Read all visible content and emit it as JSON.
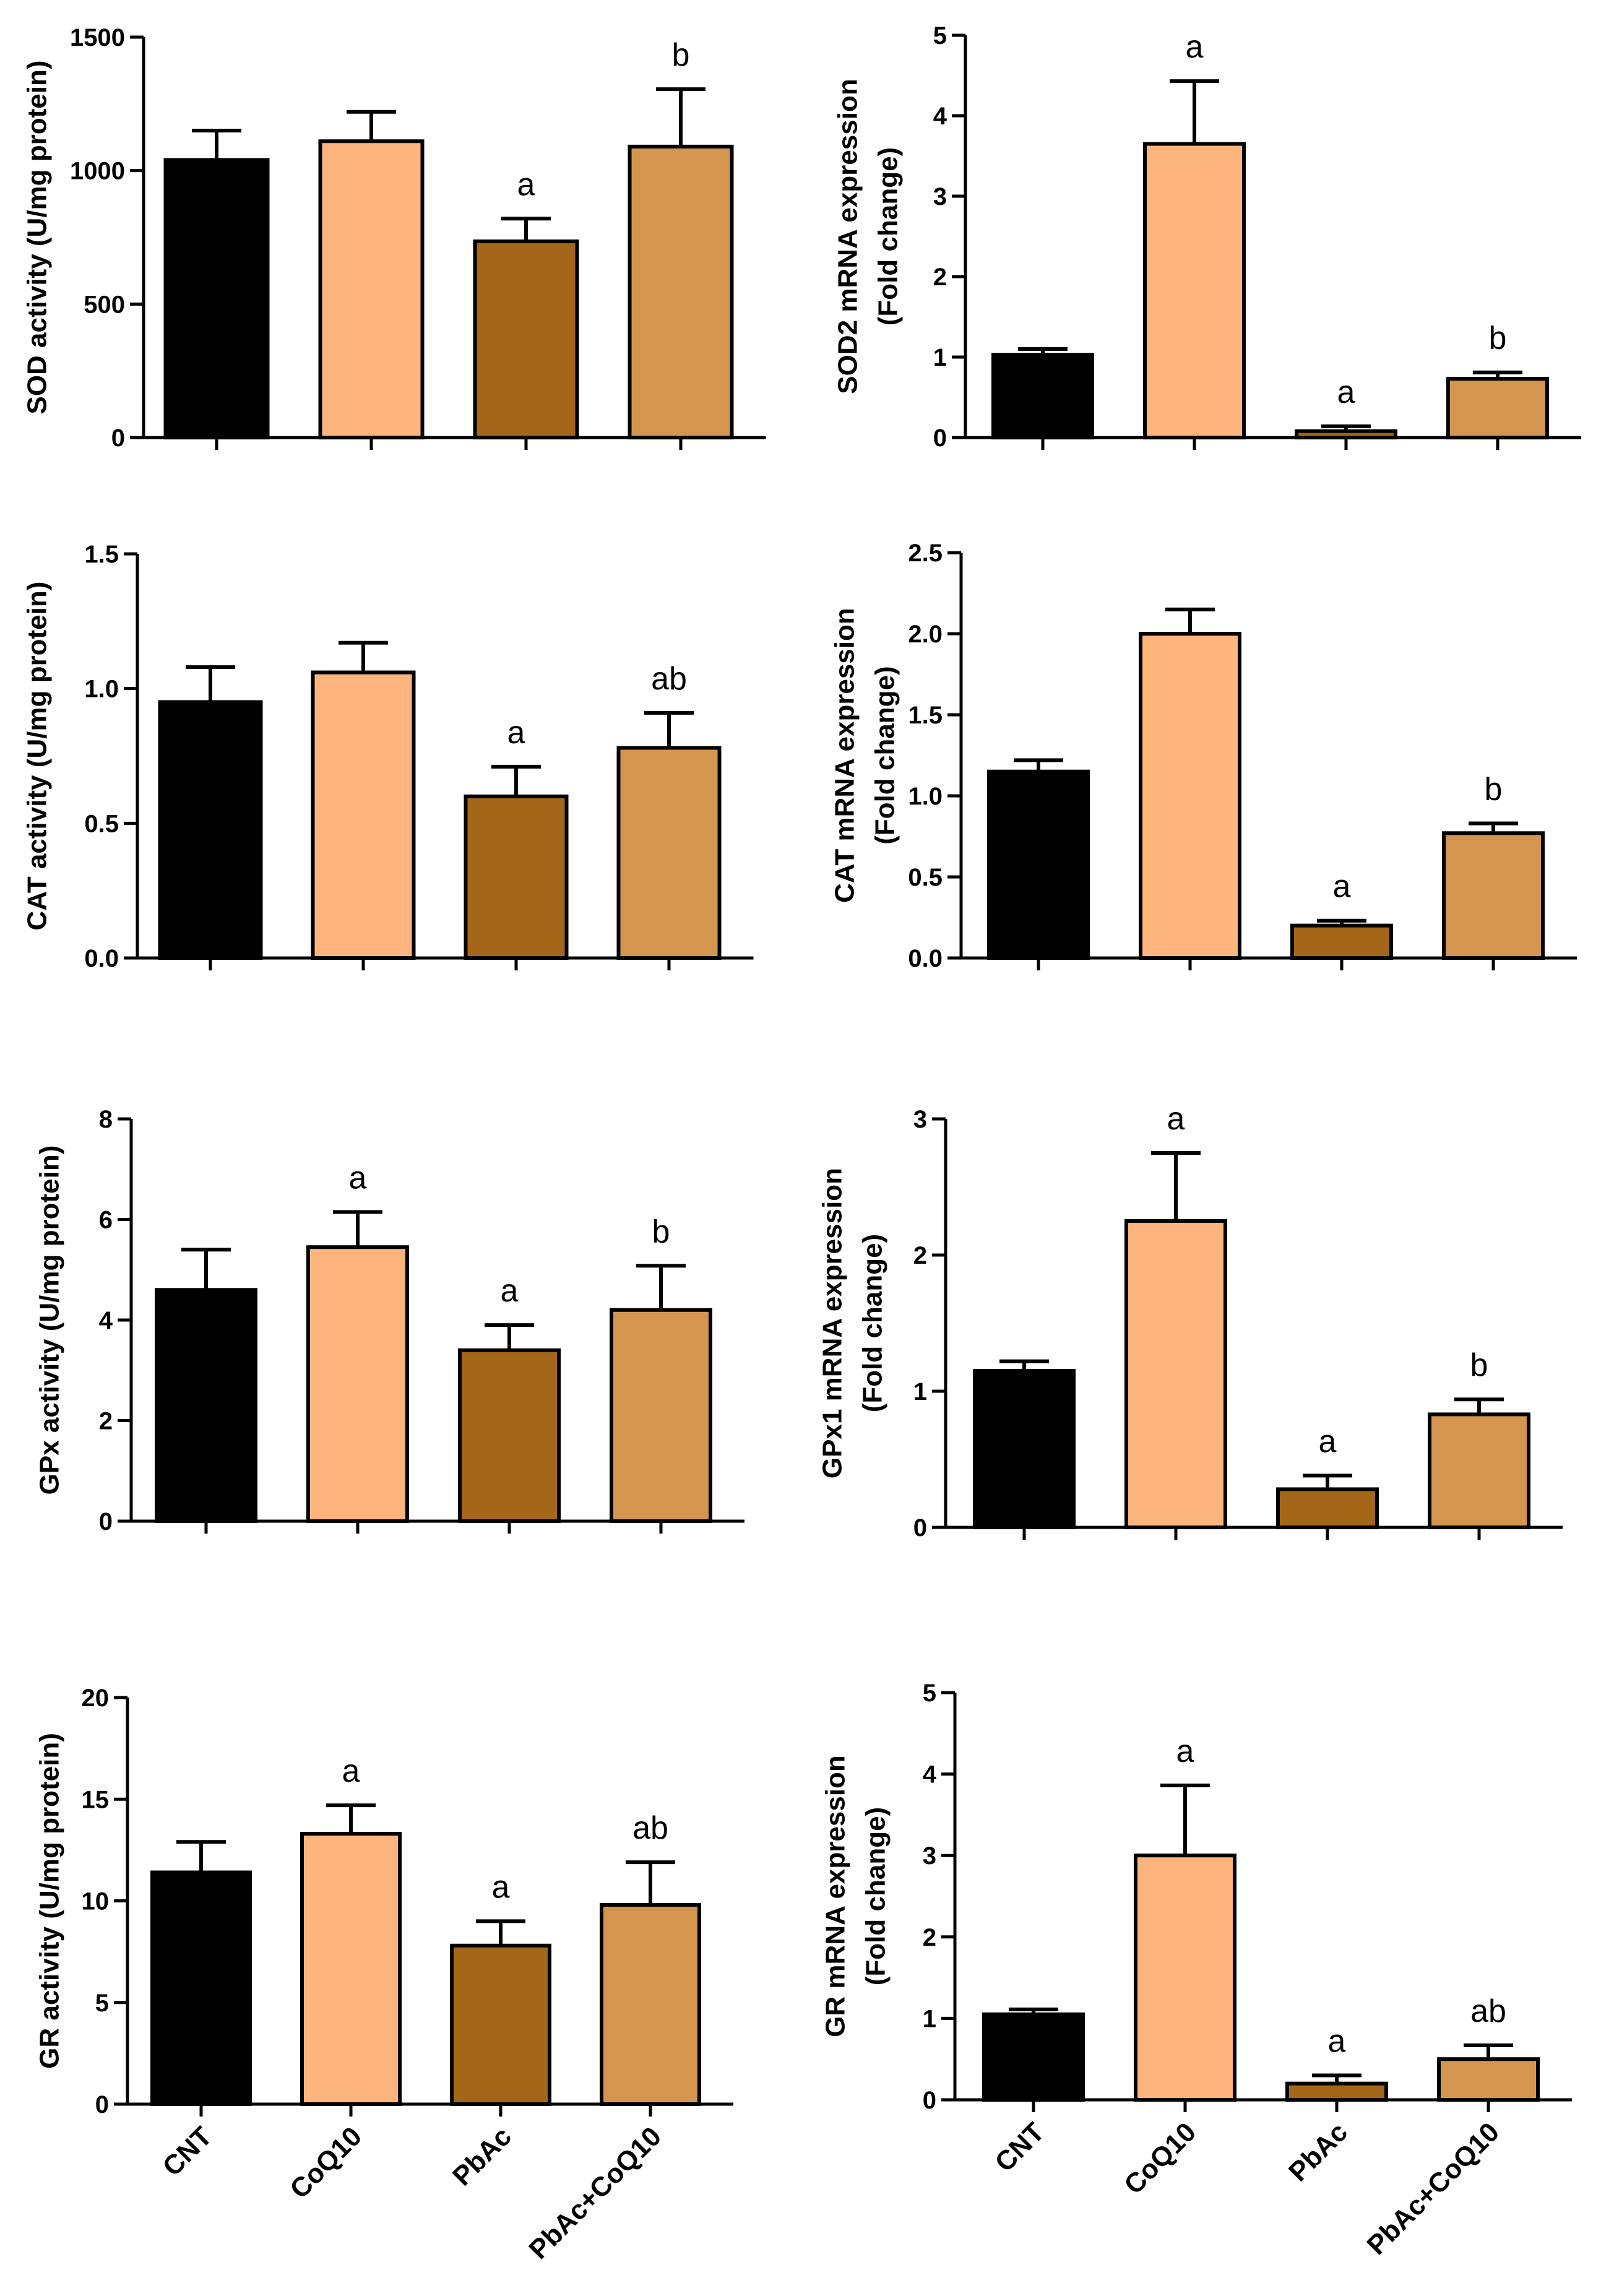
{
  "palette": {
    "CNT": "#000000",
    "CoQ10": "#FDB57D",
    "PbAc": "#A46618",
    "PbAc+CoQ10": "#D4964E"
  },
  "chart_data": [
    {
      "type": "bar",
      "ylabel": [
        "SOD activity (U/mg protein)"
      ],
      "categories": [
        "CNT",
        "CoQ10",
        "PbAc",
        "PbAc+CoQ10"
      ],
      "values": [
        1040,
        1110,
        735,
        1090
      ],
      "errors": [
        110,
        110,
        85,
        215
      ],
      "annotations": [
        "",
        "",
        "a",
        "b"
      ],
      "ylim": [
        0,
        1500
      ],
      "yticks": [
        0,
        500,
        1000,
        1500
      ],
      "ytick_labels": [
        "0",
        "500",
        "1000",
        "1500"
      ],
      "show_xlabels": false
    },
    {
      "type": "bar",
      "ylabel": [
        "SOD2 mRNA expression",
        "(Fold change)"
      ],
      "categories": [
        "CNT",
        "CoQ10",
        "PbAc",
        "PbAc+CoQ10"
      ],
      "values": [
        1.03,
        3.65,
        0.08,
        0.73
      ],
      "errors": [
        0.07,
        0.78,
        0.06,
        0.08
      ],
      "annotations": [
        "",
        "a",
        "a",
        "b"
      ],
      "ylim": [
        0,
        5
      ],
      "yticks": [
        0,
        1,
        2,
        3,
        4,
        5
      ],
      "ytick_labels": [
        "0",
        "1",
        "2",
        "3",
        "4",
        "5"
      ],
      "show_xlabels": false
    },
    {
      "type": "bar",
      "ylabel": [
        "CAT activity (U/mg protein)"
      ],
      "categories": [
        "CNT",
        "CoQ10",
        "PbAc",
        "PbAc+CoQ10"
      ],
      "values": [
        0.95,
        1.06,
        0.6,
        0.78
      ],
      "errors": [
        0.13,
        0.11,
        0.11,
        0.13
      ],
      "annotations": [
        "",
        "",
        "a",
        "ab"
      ],
      "ylim": [
        0,
        1.5
      ],
      "yticks": [
        0,
        0.5,
        1.0,
        1.5
      ],
      "ytick_labels": [
        "0.0",
        "0.5",
        "1.0",
        "1.5"
      ],
      "show_xlabels": false
    },
    {
      "type": "bar",
      "ylabel": [
        "CAT mRNA expression",
        "(Fold change)"
      ],
      "categories": [
        "CNT",
        "CoQ10",
        "PbAc",
        "PbAc+CoQ10"
      ],
      "values": [
        1.15,
        2.0,
        0.2,
        0.77
      ],
      "errors": [
        0.07,
        0.15,
        0.03,
        0.06
      ],
      "annotations": [
        "",
        "",
        "a",
        "b"
      ],
      "ylim": [
        0,
        2.5
      ],
      "yticks": [
        0,
        0.5,
        1.0,
        1.5,
        2.0,
        2.5
      ],
      "ytick_labels": [
        "0.0",
        "0.5",
        "1.0",
        "1.5",
        "2.0",
        "2.5"
      ],
      "show_xlabels": false
    },
    {
      "type": "bar",
      "ylabel": [
        "GPx activity (U/mg protein)"
      ],
      "categories": [
        "CNT",
        "CoQ10",
        "PbAc",
        "PbAc+CoQ10"
      ],
      "values": [
        4.6,
        5.45,
        3.4,
        4.2
      ],
      "errors": [
        0.8,
        0.7,
        0.5,
        0.88
      ],
      "annotations": [
        "",
        "a",
        "a",
        "b"
      ],
      "ylim": [
        0,
        8
      ],
      "yticks": [
        0,
        2,
        4,
        6,
        8
      ],
      "ytick_labels": [
        "0",
        "2",
        "4",
        "6",
        "8"
      ],
      "show_xlabels": false
    },
    {
      "type": "bar",
      "ylabel": [
        "GPx1 mRNA expression",
        "(Fold change)"
      ],
      "categories": [
        "CNT",
        "CoQ10",
        "PbAc",
        "PbAc+CoQ10"
      ],
      "values": [
        1.15,
        2.25,
        0.28,
        0.83
      ],
      "errors": [
        0.07,
        0.5,
        0.1,
        0.11
      ],
      "annotations": [
        "",
        "a",
        "a",
        "b"
      ],
      "ylim": [
        0,
        3
      ],
      "yticks": [
        0,
        1,
        2,
        3
      ],
      "ytick_labels": [
        "0",
        "1",
        "2",
        "3"
      ],
      "show_xlabels": false
    },
    {
      "type": "bar",
      "ylabel": [
        "GR activity (U/mg protein)"
      ],
      "categories": [
        "CNT",
        "CoQ10",
        "PbAc",
        "PbAc+CoQ10"
      ],
      "values": [
        11.4,
        13.3,
        7.8,
        9.8
      ],
      "errors": [
        1.5,
        1.4,
        1.2,
        2.1
      ],
      "annotations": [
        "",
        "a",
        "a",
        "ab"
      ],
      "ylim": [
        0,
        20
      ],
      "yticks": [
        0,
        5,
        10,
        15,
        20
      ],
      "ytick_labels": [
        "0",
        "5",
        "10",
        "15",
        "20"
      ],
      "show_xlabels": true
    },
    {
      "type": "bar",
      "ylabel": [
        "GR mRNA expression",
        "(Fold change)"
      ],
      "categories": [
        "CNT",
        "CoQ10",
        "PbAc",
        "PbAc+CoQ10"
      ],
      "values": [
        1.05,
        3.0,
        0.2,
        0.5
      ],
      "errors": [
        0.06,
        0.86,
        0.1,
        0.17
      ],
      "annotations": [
        "",
        "a",
        "a",
        "ab"
      ],
      "ylim": [
        0,
        5
      ],
      "yticks": [
        0,
        1,
        2,
        3,
        4,
        5
      ],
      "ytick_labels": [
        "0",
        "1",
        "2",
        "3",
        "4",
        "5"
      ],
      "show_xlabels": true
    }
  ]
}
